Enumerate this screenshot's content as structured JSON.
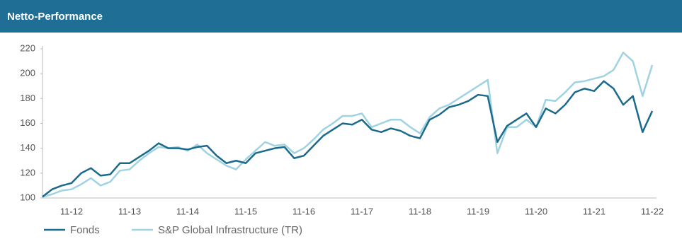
{
  "chart_data": {
    "type": "line",
    "title": "Netto-Performance",
    "categories": [
      null,
      null,
      null,
      "11-12",
      null,
      null,
      null,
      null,
      null,
      "11-13",
      null,
      null,
      null,
      null,
      null,
      "11-14",
      null,
      null,
      null,
      null,
      null,
      "11-15",
      null,
      null,
      null,
      null,
      null,
      "11-16",
      null,
      null,
      null,
      null,
      null,
      "11-17",
      null,
      null,
      null,
      null,
      null,
      "11-18",
      null,
      null,
      null,
      null,
      null,
      "11-19",
      null,
      null,
      null,
      null,
      null,
      "11-20",
      null,
      null,
      null,
      null,
      null,
      "11-21",
      null,
      null,
      null,
      null,
      null,
      "11-22"
    ],
    "series": [
      {
        "name": "Fonds",
        "color": "#1b6a8c",
        "values": [
          101,
          107,
          110,
          112,
          120,
          124,
          118,
          119,
          128,
          128,
          133,
          138,
          144,
          140,
          140,
          139,
          141,
          142,
          134,
          128,
          130,
          128,
          136,
          138,
          140,
          141,
          132,
          134,
          142,
          150,
          155,
          160,
          159,
          163,
          155,
          153,
          156,
          154,
          150,
          148,
          163,
          167,
          173,
          175,
          178,
          183,
          182,
          145,
          158,
          163,
          168,
          157,
          172,
          168,
          175,
          185,
          188,
          186,
          194,
          188,
          175,
          182,
          153,
          170
        ]
      },
      {
        "name": "S&P Global Infrastructure (TR)",
        "color": "#9fd3e2",
        "values": [
          101,
          103,
          106,
          107,
          111,
          116,
          110,
          113,
          122,
          123,
          130,
          136,
          141,
          140,
          141,
          138,
          143,
          136,
          131,
          126,
          123,
          131,
          138,
          145,
          142,
          143,
          136,
          140,
          147,
          155,
          160,
          166,
          166,
          168,
          157,
          160,
          163,
          163,
          157,
          152,
          165,
          172,
          175,
          180,
          185,
          190,
          195,
          136,
          157,
          157,
          163,
          157,
          179,
          178,
          185,
          193,
          194,
          196,
          198,
          203,
          217,
          210,
          182,
          207
        ]
      }
    ],
    "ylim": [
      100,
      220
    ],
    "yticks": [
      100,
      120,
      140,
      160,
      180,
      200,
      220
    ],
    "grid": false
  }
}
